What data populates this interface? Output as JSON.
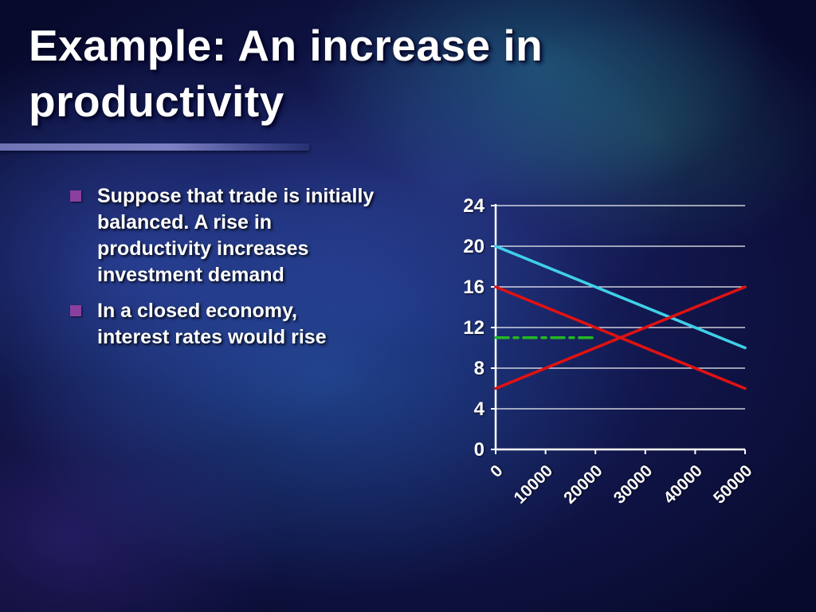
{
  "slide": {
    "title": "Example: An increase in\nproductivity",
    "bullets": [
      {
        "text": "Suppose that trade is initially\nbalanced.  A rise in\nproductivity increases\ninvestment demand"
      },
      {
        "text": "In a closed economy,\ninterest rates would rise"
      }
    ]
  },
  "colors": {
    "background_base": "#0c1038",
    "title_text": "#ffffff",
    "body_text": "#ffffff",
    "bullet_marker": "#8b3fa0",
    "accent_bar": "#6f74b4",
    "axis_and_grid": "#ffffff",
    "series_cyan": "#3fd0e8",
    "series_red": "#e01212",
    "series_green": "#22b822"
  },
  "chart_data": {
    "type": "line",
    "title": "",
    "xlabel": "",
    "ylabel": "",
    "xlim": [
      0,
      50000
    ],
    "ylim": [
      0,
      24
    ],
    "xticks": [
      0,
      10000,
      20000,
      30000,
      40000,
      50000
    ],
    "yticks": [
      0,
      4,
      8,
      12,
      16,
      20,
      24
    ],
    "grid": "horizontal-gridlines",
    "legend": "none",
    "series": [
      {
        "name": "cyan-downward-line",
        "color": "#3fd0e8",
        "style": "solid",
        "x": [
          0,
          50000
        ],
        "y": [
          20,
          10
        ]
      },
      {
        "name": "red-downward-line",
        "color": "#e01212",
        "style": "solid",
        "x": [
          0,
          50000
        ],
        "y": [
          16,
          6
        ]
      },
      {
        "name": "red-upward-line",
        "color": "#e01212",
        "style": "solid",
        "x": [
          0,
          50000
        ],
        "y": [
          6,
          16
        ]
      },
      {
        "name": "green-dash-dot-segment",
        "color": "#22b822",
        "style": "dash-dot",
        "x": [
          0,
          20000
        ],
        "y": [
          11,
          11
        ]
      }
    ]
  }
}
